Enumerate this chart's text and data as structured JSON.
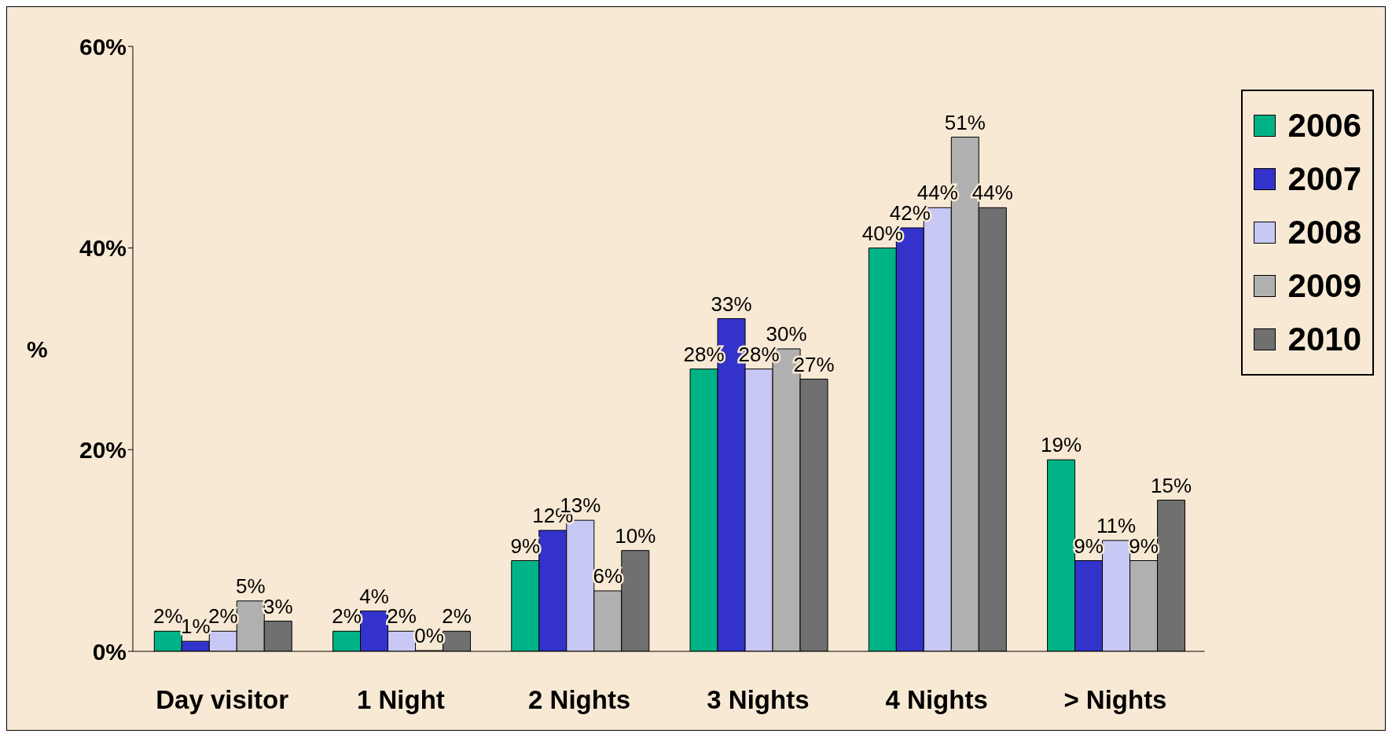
{
  "chart_data": {
    "type": "bar",
    "ylabel": "%",
    "categories": [
      "Day visitor",
      "1 Night",
      "2 Nights",
      "3 Nights",
      "4 Nights",
      "> Nights"
    ],
    "series": [
      {
        "name": "2006",
        "color": "#00b386",
        "values": [
          2,
          2,
          9,
          28,
          40,
          19
        ],
        "value_labels": [
          "2%",
          "2%",
          "9%",
          "28%",
          "40%",
          "19%"
        ]
      },
      {
        "name": "2007",
        "color": "#3333cc",
        "values": [
          1,
          4,
          12,
          33,
          42,
          9
        ],
        "value_labels": [
          "1%",
          "4%",
          "12%",
          "33%",
          "42%",
          "9%"
        ]
      },
      {
        "name": "2008",
        "color": "#c8c8f4",
        "values": [
          2,
          2,
          13,
          28,
          44,
          11
        ],
        "value_labels": [
          "2%",
          "2%",
          "13%",
          "28%",
          "44%",
          "11%"
        ]
      },
      {
        "name": "2009",
        "color": "#b0b0b0",
        "values": [
          5,
          0,
          6,
          30,
          51,
          9
        ],
        "value_labels": [
          "5%",
          "0%",
          "6%",
          "30%",
          "51%",
          "9%"
        ]
      },
      {
        "name": "2010",
        "color": "#707070",
        "values": [
          3,
          2,
          10,
          27,
          44,
          15
        ],
        "value_labels": [
          "3%",
          "2%",
          "10%",
          "27%",
          "44%",
          "15%"
        ]
      }
    ],
    "ylim": [
      0,
      60
    ],
    "yticks": [
      {
        "value": 0,
        "label": "0%"
      },
      {
        "value": 20,
        "label": "20%"
      },
      {
        "value": 40,
        "label": "40%"
      },
      {
        "value": 60,
        "label": "60%"
      }
    ],
    "grid": false,
    "legend": "top right"
  }
}
